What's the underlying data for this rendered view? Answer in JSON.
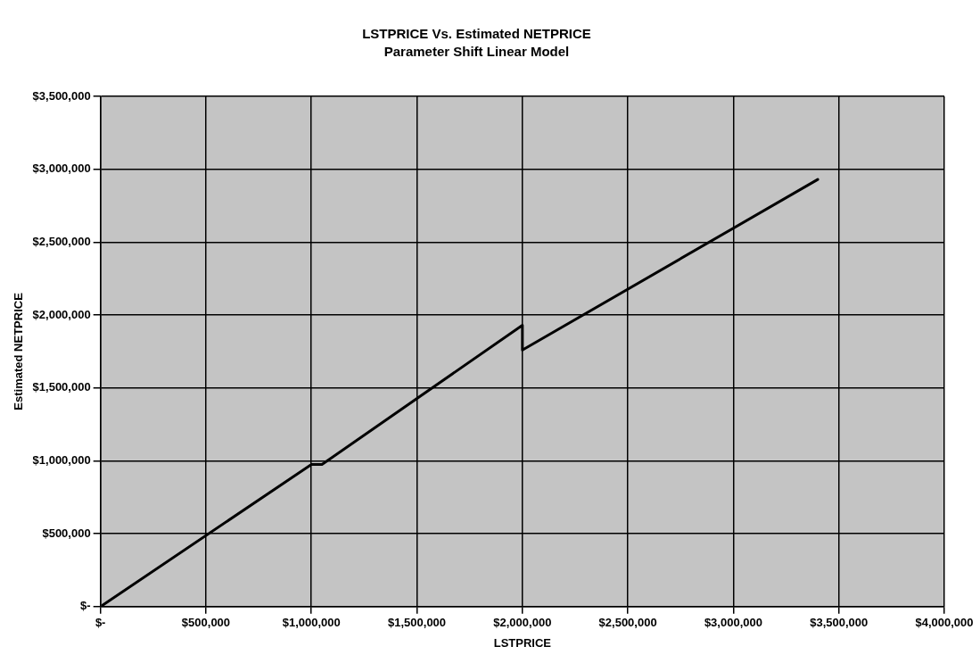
{
  "chart_data": {
    "type": "line",
    "title": "LSTPRICE Vs. Estimated NETPRICE",
    "subtitle": "Parameter Shift Linear Model",
    "xlabel": "LSTPRICE",
    "ylabel": "Estimated NETPRICE",
    "x": [
      10000,
      1000000,
      1050000,
      2000000,
      2000000,
      3400000
    ],
    "series": [
      {
        "color": "#000000",
        "values": [
          10000,
          975000,
          975000,
          1930000,
          1760000,
          2930000
        ]
      }
    ],
    "xlim": [
      0,
      4000000
    ],
    "ylim": [
      0,
      3500000
    ],
    "xticks": [
      {
        "value": 0,
        "label": "$-"
      },
      {
        "value": 500000,
        "label": "$500,000"
      },
      {
        "value": 1000000,
        "label": "$1,000,000"
      },
      {
        "value": 1500000,
        "label": "$1,500,000"
      },
      {
        "value": 2000000,
        "label": "$2,000,000"
      },
      {
        "value": 2500000,
        "label": "$2,500,000"
      },
      {
        "value": 3000000,
        "label": "$3,000,000"
      },
      {
        "value": 3500000,
        "label": "$3,500,000"
      },
      {
        "value": 4000000,
        "label": "$4,000,000"
      }
    ],
    "yticks": [
      {
        "value": 0,
        "label": "$-"
      },
      {
        "value": 500000,
        "label": "$500,000"
      },
      {
        "value": 1000000,
        "label": "$1,000,000"
      },
      {
        "value": 1500000,
        "label": "$1,500,000"
      },
      {
        "value": 2000000,
        "label": "$2,000,000"
      },
      {
        "value": 2500000,
        "label": "$2,500,000"
      },
      {
        "value": 3000000,
        "label": "$3,000,000"
      },
      {
        "value": 3500000,
        "label": "$3,500,000"
      }
    ],
    "grid": true,
    "legend": false,
    "marker": "none",
    "line_style": "solid"
  }
}
